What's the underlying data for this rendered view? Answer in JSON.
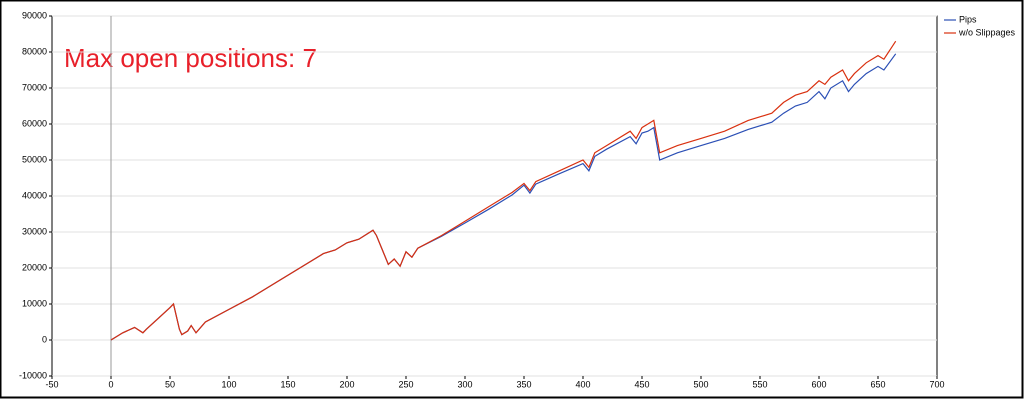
{
  "chart_data": {
    "type": "line",
    "annotation": "Max open positions: 7",
    "annotation_color": "#e8202a",
    "x": [
      0,
      10,
      20,
      27,
      30,
      40,
      50,
      53,
      58,
      60,
      65,
      68,
      72,
      80,
      100,
      120,
      140,
      160,
      180,
      190,
      200,
      210,
      222,
      225,
      230,
      235,
      240,
      245,
      250,
      255,
      260,
      280,
      300,
      320,
      340,
      350,
      355,
      360,
      380,
      400,
      405,
      410,
      420,
      440,
      445,
      450,
      455,
      460,
      465,
      480,
      500,
      520,
      540,
      560,
      570,
      580,
      590,
      600,
      605,
      610,
      620,
      625,
      630,
      640,
      650,
      655,
      665
    ],
    "series": [
      {
        "name": "Pips",
        "color": "#2b4fb5",
        "values": [
          0,
          2000,
          3500,
          2000,
          3000,
          6000,
          9000,
          10000,
          3000,
          1500,
          2500,
          4000,
          2000,
          5000,
          8500,
          12000,
          16000,
          20000,
          24000,
          25000,
          27000,
          28000,
          30500,
          29000,
          25000,
          21000,
          22500,
          20500,
          24500,
          23000,
          25500,
          28800,
          32500,
          36300,
          40300,
          43000,
          40800,
          43300,
          46200,
          49000,
          47000,
          51000,
          53000,
          56500,
          54500,
          57500,
          58000,
          59000,
          50000,
          52000,
          54000,
          56000,
          58500,
          60500,
          63000,
          65000,
          66000,
          69000,
          67000,
          70000,
          72000,
          69000,
          71000,
          74000,
          76000,
          75000,
          79500
        ]
      },
      {
        "name": "w/o Slippages",
        "color": "#d9300f",
        "values": [
          0,
          2000,
          3500,
          2000,
          3000,
          6000,
          9000,
          10000,
          3000,
          1500,
          2500,
          4000,
          2000,
          5000,
          8500,
          12000,
          16000,
          20000,
          24000,
          25000,
          27000,
          28000,
          30500,
          29000,
          25000,
          21000,
          22500,
          20500,
          24500,
          23000,
          25500,
          29000,
          33000,
          37000,
          41000,
          43500,
          41500,
          44000,
          47000,
          50000,
          48000,
          52000,
          54000,
          58000,
          56000,
          59000,
          60000,
          61000,
          52000,
          54000,
          56000,
          58000,
          61000,
          63000,
          66000,
          68000,
          69000,
          72000,
          71000,
          73000,
          75000,
          72000,
          74000,
          77000,
          79000,
          78000,
          83000
        ]
      }
    ],
    "xlim": [
      -50,
      700
    ],
    "xticks": [
      -50,
      0,
      50,
      100,
      150,
      200,
      250,
      300,
      350,
      400,
      450,
      500,
      550,
      600,
      650,
      700
    ],
    "ylim": [
      -10000,
      90000
    ],
    "yticks": [
      -10000,
      0,
      10000,
      20000,
      30000,
      40000,
      50000,
      60000,
      70000,
      80000,
      90000
    ],
    "grid": true,
    "legend": "upper right"
  }
}
